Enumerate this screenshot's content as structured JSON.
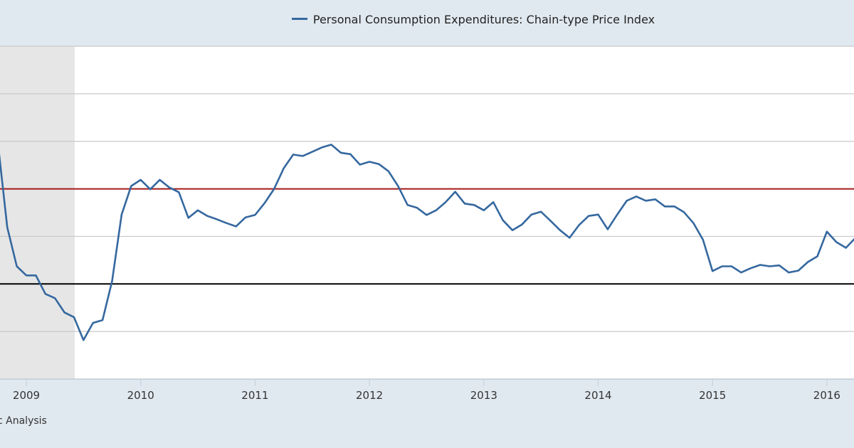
{
  "legend": {
    "label": "Personal Consumption Expenditures: Chain-type Price Index",
    "color": "#35689f"
  },
  "source": "c Analysis",
  "chart_data": {
    "type": "line",
    "title": "",
    "xlabel": "",
    "ylabel": "",
    "ylim": [
      -2,
      5
    ],
    "xlim": [
      "2008-10",
      "2016-04"
    ],
    "grid": true,
    "legend_position": "top",
    "x_ticks": [
      "2009",
      "2010",
      "2011",
      "2012",
      "2013",
      "2014",
      "2015",
      "2016"
    ],
    "y_gridlines": [
      -2,
      -1,
      0,
      1,
      2,
      3,
      4,
      5
    ],
    "reference_lines": [
      {
        "value": 2,
        "color": "#a31a1a"
      },
      {
        "value": 0,
        "color": "#000000"
      }
    ],
    "recession_shading": {
      "start": "2008-10",
      "end": "2009-06",
      "color": "#e6e6e6"
    },
    "colors": {
      "series": "#35689f",
      "plot_bg": "#ffffff",
      "page_bg": "#e1e9f0",
      "grid": "#c8c8c8"
    },
    "series": [
      {
        "name": "Personal Consumption Expenditures: Chain-type Price Index",
        "x": [
          "2008-10",
          "2008-11",
          "2008-12",
          "2009-01",
          "2009-02",
          "2009-03",
          "2009-04",
          "2009-05",
          "2009-06",
          "2009-07",
          "2009-08",
          "2009-09",
          "2009-10",
          "2009-11",
          "2009-12",
          "2010-01",
          "2010-02",
          "2010-03",
          "2010-04",
          "2010-05",
          "2010-06",
          "2010-07",
          "2010-08",
          "2010-09",
          "2010-10",
          "2010-11",
          "2010-12",
          "2011-01",
          "2011-02",
          "2011-03",
          "2011-04",
          "2011-05",
          "2011-06",
          "2011-07",
          "2011-08",
          "2011-09",
          "2011-10",
          "2011-11",
          "2011-12",
          "2012-01",
          "2012-02",
          "2012-03",
          "2012-04",
          "2012-05",
          "2012-06",
          "2012-07",
          "2012-08",
          "2012-09",
          "2012-10",
          "2012-11",
          "2012-12",
          "2013-01",
          "2013-02",
          "2013-03",
          "2013-04",
          "2013-05",
          "2013-06",
          "2013-07",
          "2013-08",
          "2013-09",
          "2013-10",
          "2013-11",
          "2013-12",
          "2014-01",
          "2014-02",
          "2014-03",
          "2014-04",
          "2014-05",
          "2014-06",
          "2014-07",
          "2014-08",
          "2014-09",
          "2014-10",
          "2014-11",
          "2014-12",
          "2015-01",
          "2015-02",
          "2015-03",
          "2015-04",
          "2015-05",
          "2015-06",
          "2015-07",
          "2015-08",
          "2015-09",
          "2015-10",
          "2015-11",
          "2015-12",
          "2016-01",
          "2016-02",
          "2016-03",
          "2016-04"
        ],
        "values": [
          3.0,
          1.19,
          0.37,
          0.18,
          0.18,
          -0.21,
          -0.3,
          -0.6,
          -0.7,
          -1.18,
          -0.82,
          -0.76,
          0.06,
          1.46,
          2.06,
          2.19,
          1.99,
          2.19,
          2.03,
          1.93,
          1.39,
          1.55,
          1.43,
          1.36,
          1.28,
          1.21,
          1.4,
          1.45,
          1.7,
          2.0,
          2.43,
          2.72,
          2.69,
          2.78,
          2.87,
          2.93,
          2.76,
          2.73,
          2.51,
          2.57,
          2.52,
          2.37,
          2.06,
          1.66,
          1.6,
          1.45,
          1.55,
          1.72,
          1.94,
          1.69,
          1.66,
          1.55,
          1.72,
          1.34,
          1.13,
          1.25,
          1.46,
          1.52,
          1.33,
          1.13,
          0.97,
          1.24,
          1.43,
          1.46,
          1.15,
          1.46,
          1.75,
          1.84,
          1.75,
          1.78,
          1.63,
          1.63,
          1.51,
          1.28,
          0.93,
          0.27,
          0.37,
          0.37,
          0.24,
          0.33,
          0.4,
          0.37,
          0.39,
          0.24,
          0.28,
          0.46,
          0.58,
          1.1,
          0.88,
          0.76,
          0.97
        ]
      }
    ]
  }
}
